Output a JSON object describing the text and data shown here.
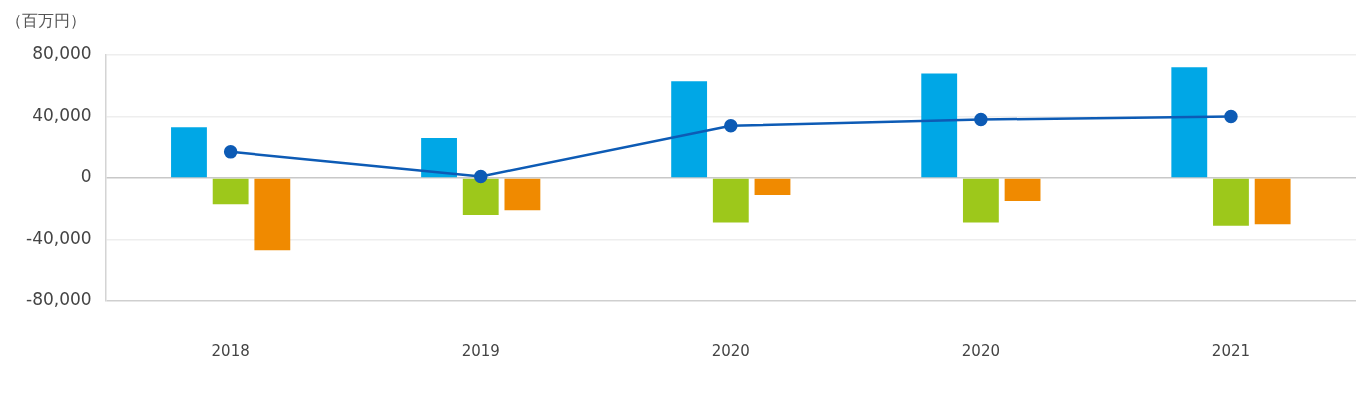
{
  "chart_data": {
    "type": "bar",
    "ylabel": "（百万円）",
    "categories": [
      "2018",
      "2019",
      "2020",
      "2020",
      "2021"
    ],
    "series": [
      {
        "color": "#00a7e6",
        "values": [
          33000,
          26000,
          63000,
          68000,
          72000
        ]
      },
      {
        "color": "#9dc81b",
        "values": [
          -17000,
          -24000,
          -29000,
          -29000,
          -31000
        ]
      },
      {
        "color": "#f08a00",
        "values": [
          -47000,
          -21000,
          -11000,
          -15000,
          -30000
        ]
      },
      {
        "type": "line",
        "color": "#0d5bb5",
        "values": [
          17000,
          1000,
          34000,
          38000,
          40000
        ]
      }
    ],
    "ylim": [
      -80000,
      80000
    ],
    "yticks": [
      {
        "value": -80000,
        "label": "-80,000"
      },
      {
        "value": -40000,
        "label": "-40,000"
      },
      {
        "value": 0,
        "label": "0"
      },
      {
        "value": 40000,
        "label": "40,000"
      },
      {
        "value": 80000,
        "label": "80,000"
      }
    ],
    "grid": "y",
    "legend": false,
    "marker": "circle",
    "line_style": "solid"
  }
}
